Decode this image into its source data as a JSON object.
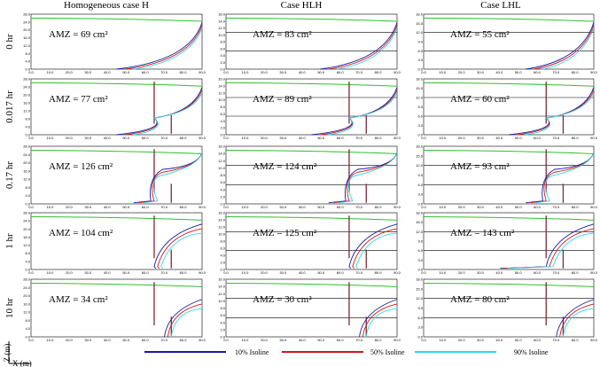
{
  "columns": [
    "Homogeneous case H",
    "Case HLH",
    "Case LHL"
  ],
  "rows": [
    "0 hr",
    "0.017 hr",
    "0.17 hr",
    "1 hr",
    "10 hr"
  ],
  "panels": [
    [
      "AMZ = 69 cm²",
      "AMZ = 83 cm²",
      "AMZ = 55 cm²"
    ],
    [
      "AMZ = 77 cm²",
      "AMZ = 89 cm²",
      "AMZ = 60 cm²"
    ],
    [
      "AMZ = 126 cm²",
      "AMZ = 124 cm²",
      "AMZ = 93 cm²"
    ],
    [
      "AMZ = 104 cm²",
      "AMZ = 125 cm²",
      "AMZ = 143 cm²"
    ],
    [
      "AMZ = 34 cm²",
      "AMZ = 30 cm²",
      "AMZ = 80 cm²"
    ]
  ],
  "x_ticks": [
    "0.0",
    "10.0",
    "20.0",
    "30.0",
    "40.0",
    "50.0",
    "60.0",
    "70.0",
    "80.0",
    "90.0"
  ],
  "y_ticks": [
    [
      "0.0",
      "4.0",
      "8.0",
      "12.0",
      "16.0",
      "20.0",
      "24.0",
      "28.0"
    ],
    [
      "0.0",
      "2.0",
      "4.0",
      "6.0",
      "8.0",
      "10.0",
      "12.0",
      "14.0",
      "16.0"
    ],
    [
      "0.0",
      "3.0",
      "6.0",
      "9.0",
      "12.0",
      "15.0",
      "18.0"
    ]
  ],
  "legend": [
    "10% Isoline",
    "50% Isoline",
    "90% Isoline"
  ],
  "axes": {
    "z": "Z (m)",
    "x": "X (m)"
  }
}
